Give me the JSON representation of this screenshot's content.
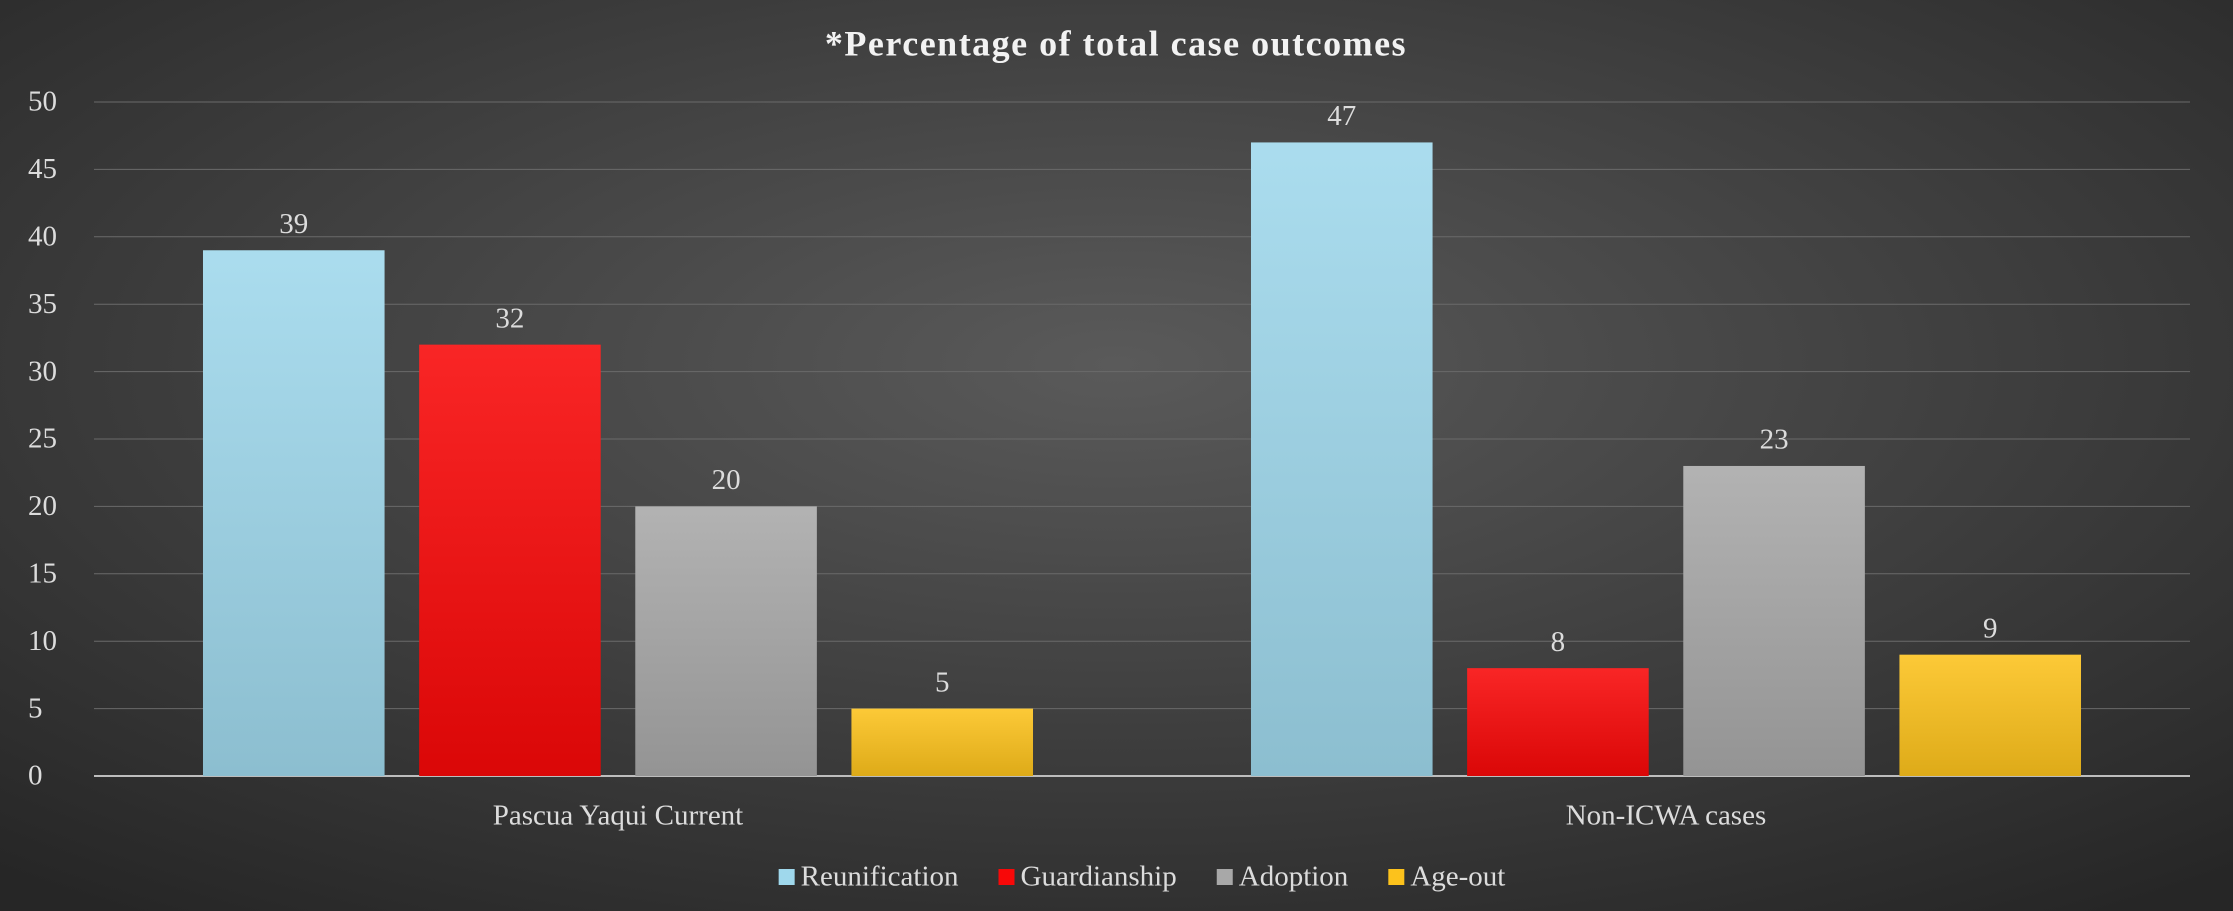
{
  "chart_data": {
    "type": "bar",
    "title": "*Percentage of total case outcomes",
    "categories": [
      "Pascua Yaqui Current",
      "Non-ICWA cases"
    ],
    "series": [
      {
        "name": "Reunification",
        "color": "#9fd8ec",
        "values": [
          39,
          47
        ]
      },
      {
        "name": "Guardianship",
        "color": "#f80808",
        "values": [
          32,
          8
        ]
      },
      {
        "name": "Adoption",
        "color": "#a8a8a8",
        "values": [
          20,
          23
        ]
      },
      {
        "name": "Age-out",
        "color": "#fcc21c",
        "values": [
          5,
          9
        ]
      }
    ],
    "ylim": [
      0,
      50
    ],
    "yticks": [
      0,
      5,
      10,
      15,
      20,
      25,
      30,
      35,
      40,
      45,
      50
    ],
    "grid": true,
    "legend": "bottom"
  }
}
